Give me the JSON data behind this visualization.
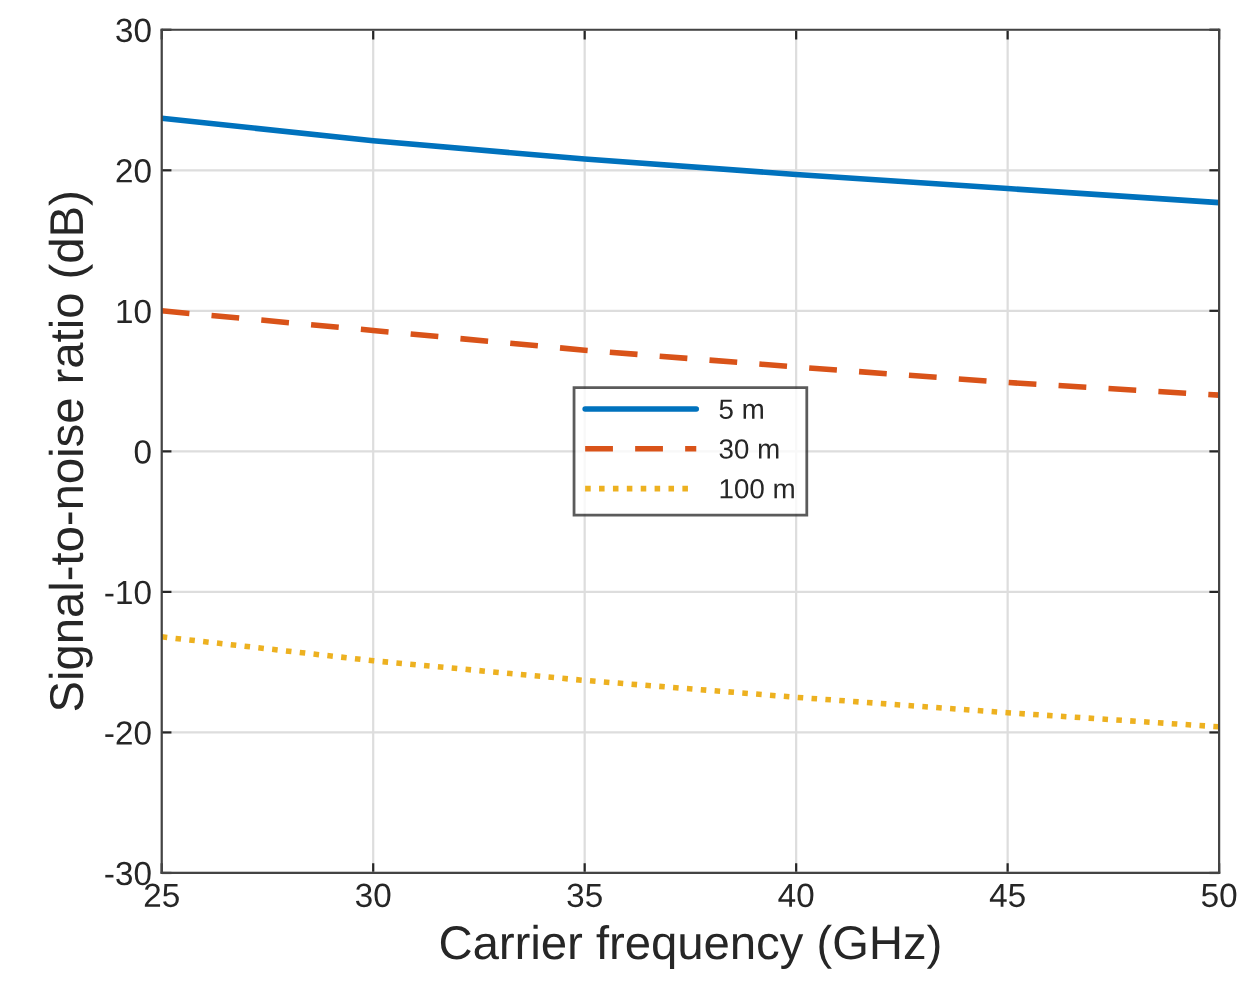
{
  "chart_data": {
    "type": "line",
    "xlabel": "Carrier frequency (GHz)",
    "ylabel": "Signal-to-noise ratio (dB)",
    "x": [
      25,
      30,
      35,
      40,
      45,
      50
    ],
    "series": [
      {
        "name": "5 m",
        "color": "#0072bd",
        "line_style": "solid",
        "values": [
          23.7,
          22.1,
          20.8,
          19.7,
          18.7,
          17.7
        ]
      },
      {
        "name": "30 m",
        "color": "#d95319",
        "line_style": "dashed",
        "values": [
          10.0,
          8.6,
          7.2,
          6.0,
          4.9,
          4.0
        ]
      },
      {
        "name": "100 m",
        "color": "#edb120",
        "line_style": "dotted",
        "values": [
          -13.2,
          -14.9,
          -16.3,
          -17.5,
          -18.6,
          -19.6
        ]
      }
    ],
    "xlim": [
      25,
      50
    ],
    "xticks": [
      25,
      30,
      35,
      40,
      45,
      50
    ],
    "ylim": [
      -30,
      30
    ],
    "yticks": [
      -30,
      -20,
      -10,
      0,
      10,
      20,
      30
    ],
    "grid": true,
    "legend": "center",
    "marker": "none"
  }
}
